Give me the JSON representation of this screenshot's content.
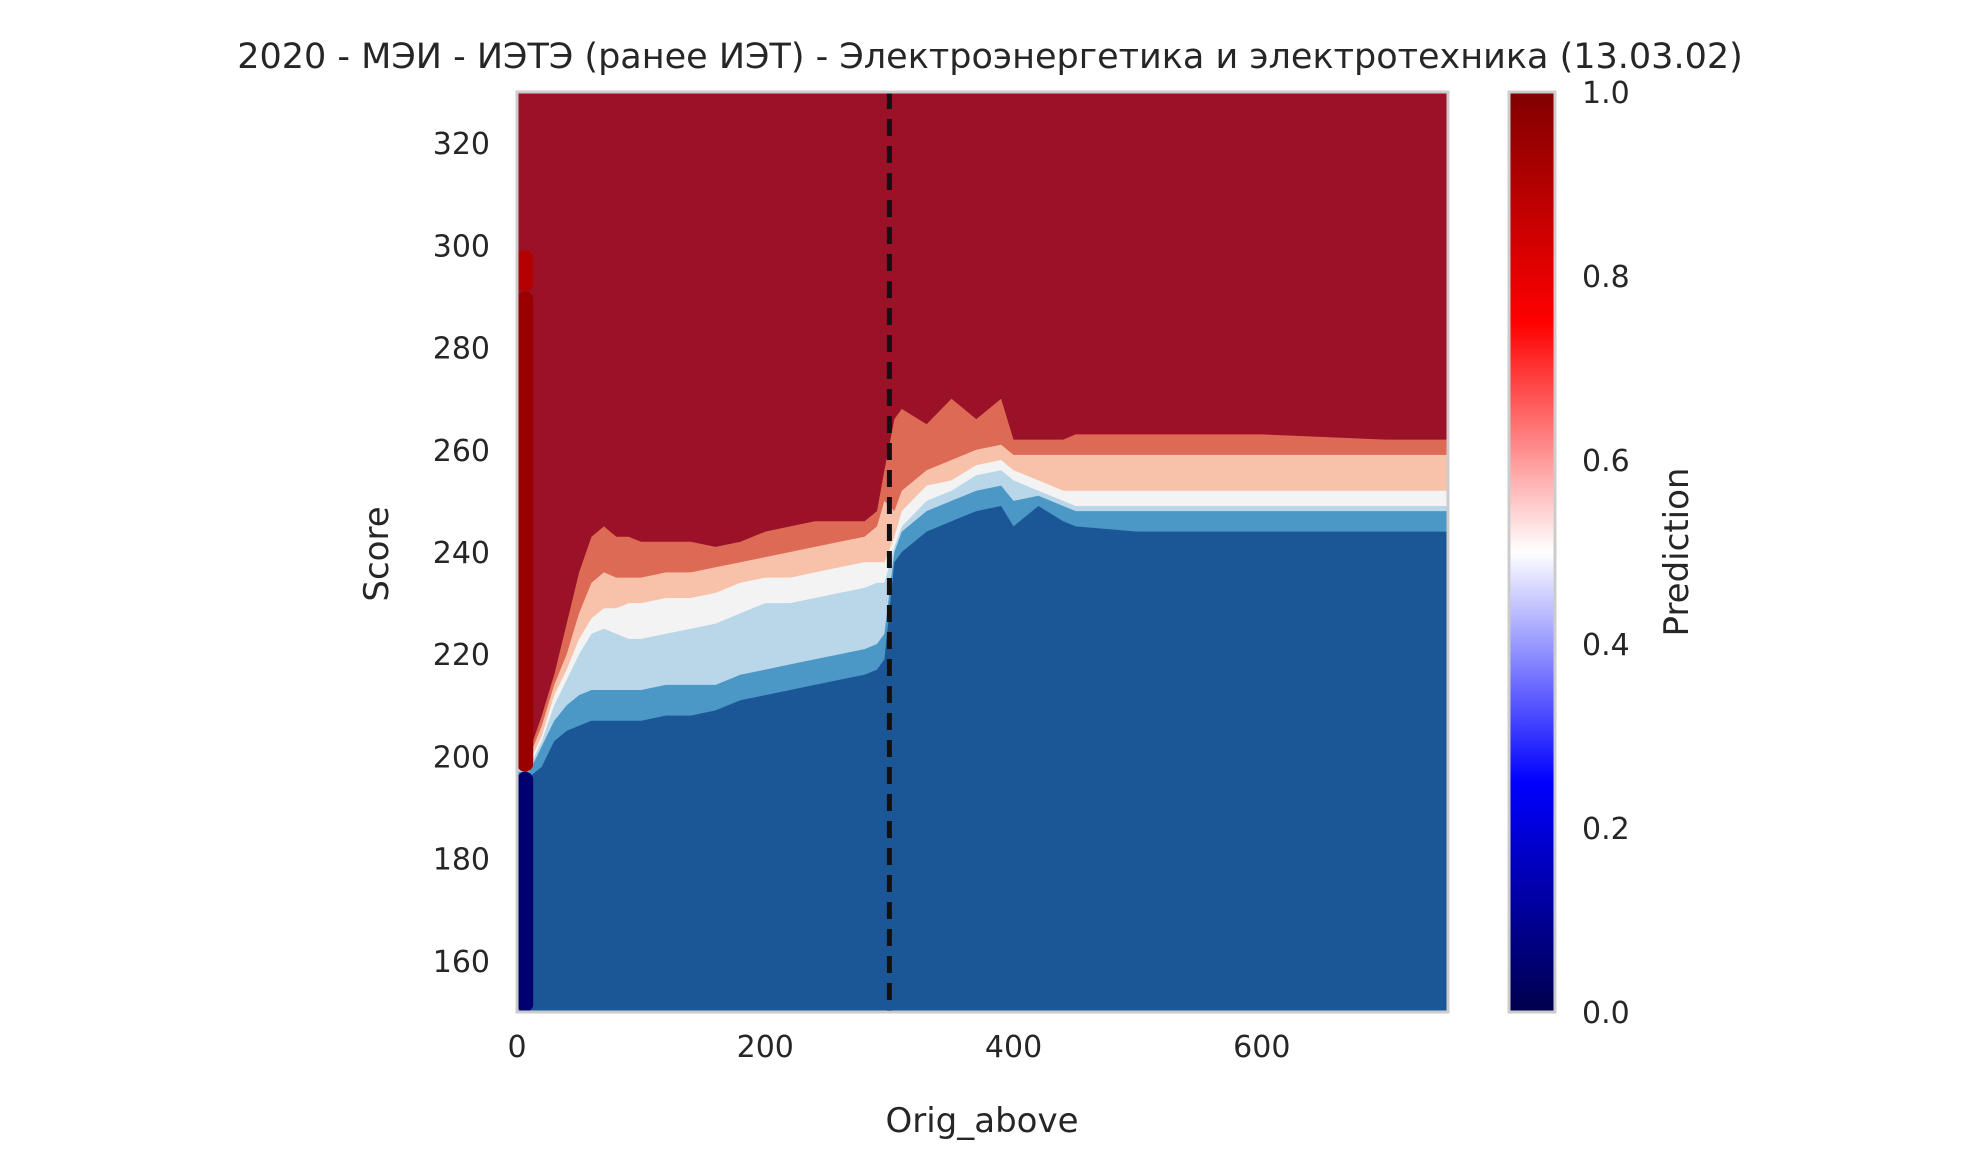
{
  "chart_data": {
    "type": "heatmap",
    "title": "2020 - МЭИ - ИЭТЭ (ранее ИЭТ) - Электроэнергетика и электротехника (13.03.02)",
    "xlabel": "Orig_above",
    "ylabel": "Score",
    "xlim": [
      0,
      750
    ],
    "ylim": [
      150,
      330
    ],
    "xticks": [
      "0",
      "200",
      "400",
      "600"
    ],
    "yticks": [
      "160",
      "180",
      "200",
      "220",
      "240",
      "260",
      "280",
      "300",
      "320"
    ],
    "grid": false,
    "colorbar": {
      "label": "Prediction",
      "range": [
        0,
        1
      ],
      "ticks": [
        "0.0",
        "0.2",
        "0.4",
        "0.6",
        "0.8",
        "1.0"
      ],
      "colormap": "seismic"
    },
    "reference_line": {
      "x": 300,
      "style": "dashed",
      "color": "#111111"
    },
    "level_colors": [
      "#1b5797",
      "#4b97c6",
      "#b9d7e8",
      "#f3f3f3",
      "#f8c2aa",
      "#dc6a55",
      "#9a1128"
    ],
    "contour_boundaries": {
      "x": [
        10,
        20,
        30,
        40,
        50,
        60,
        70,
        80,
        90,
        100,
        120,
        140,
        160,
        180,
        200,
        220,
        240,
        260,
        280,
        290,
        296,
        304,
        310,
        330,
        350,
        370,
        390,
        400,
        420,
        440,
        450,
        500,
        600,
        700,
        750
      ],
      "levels": [
        [
          196,
          198,
          203,
          205,
          206,
          207,
          207,
          207,
          207,
          207,
          208,
          208,
          209,
          211,
          212,
          213,
          214,
          215,
          216,
          217,
          219,
          238,
          240,
          244,
          246,
          248,
          249,
          245,
          249,
          246,
          245,
          244,
          244,
          244,
          244
        ],
        [
          197,
          202,
          207,
          210,
          212,
          213,
          213,
          213,
          213,
          213,
          214,
          214,
          214,
          216,
          217,
          218,
          219,
          220,
          221,
          222,
          224,
          240,
          244,
          248,
          250,
          252,
          253,
          250,
          251,
          249,
          248,
          248,
          248,
          248,
          248
        ],
        [
          198,
          203,
          210,
          215,
          220,
          224,
          225,
          224,
          223,
          223,
          224,
          225,
          226,
          228,
          230,
          230,
          231,
          232,
          233,
          234,
          234,
          241,
          245,
          250,
          252,
          255,
          256,
          254,
          252,
          250,
          249,
          249,
          249,
          249,
          249
        ],
        [
          199,
          204,
          212,
          217,
          223,
          227,
          229,
          229,
          230,
          230,
          231,
          231,
          232,
          234,
          235,
          235,
          236,
          237,
          238,
          238,
          238,
          243,
          248,
          253,
          254,
          257,
          258,
          256,
          254,
          252,
          252,
          252,
          252,
          252,
          252
        ],
        [
          200,
          206,
          214,
          220,
          228,
          234,
          236,
          235,
          235,
          235,
          236,
          236,
          237,
          238,
          239,
          240,
          241,
          242,
          243,
          245,
          250,
          248,
          252,
          256,
          258,
          260,
          261,
          259,
          259,
          259,
          259,
          259,
          259,
          259,
          259
        ],
        [
          201,
          208,
          216,
          226,
          236,
          243,
          245,
          243,
          243,
          242,
          242,
          242,
          241,
          242,
          244,
          245,
          246,
          246,
          246,
          248,
          256,
          266,
          268,
          265,
          270,
          266,
          270,
          262,
          262,
          262,
          263,
          263,
          263,
          262,
          262
        ]
      ]
    },
    "boundary_strip": {
      "x": 5,
      "segments": [
        {
          "from": 150,
          "to": 197,
          "value": 0.05
        },
        {
          "from": 197,
          "to": 291,
          "value": 0.95
        },
        {
          "from": 291,
          "to": 299,
          "value": 0.9
        }
      ]
    }
  }
}
